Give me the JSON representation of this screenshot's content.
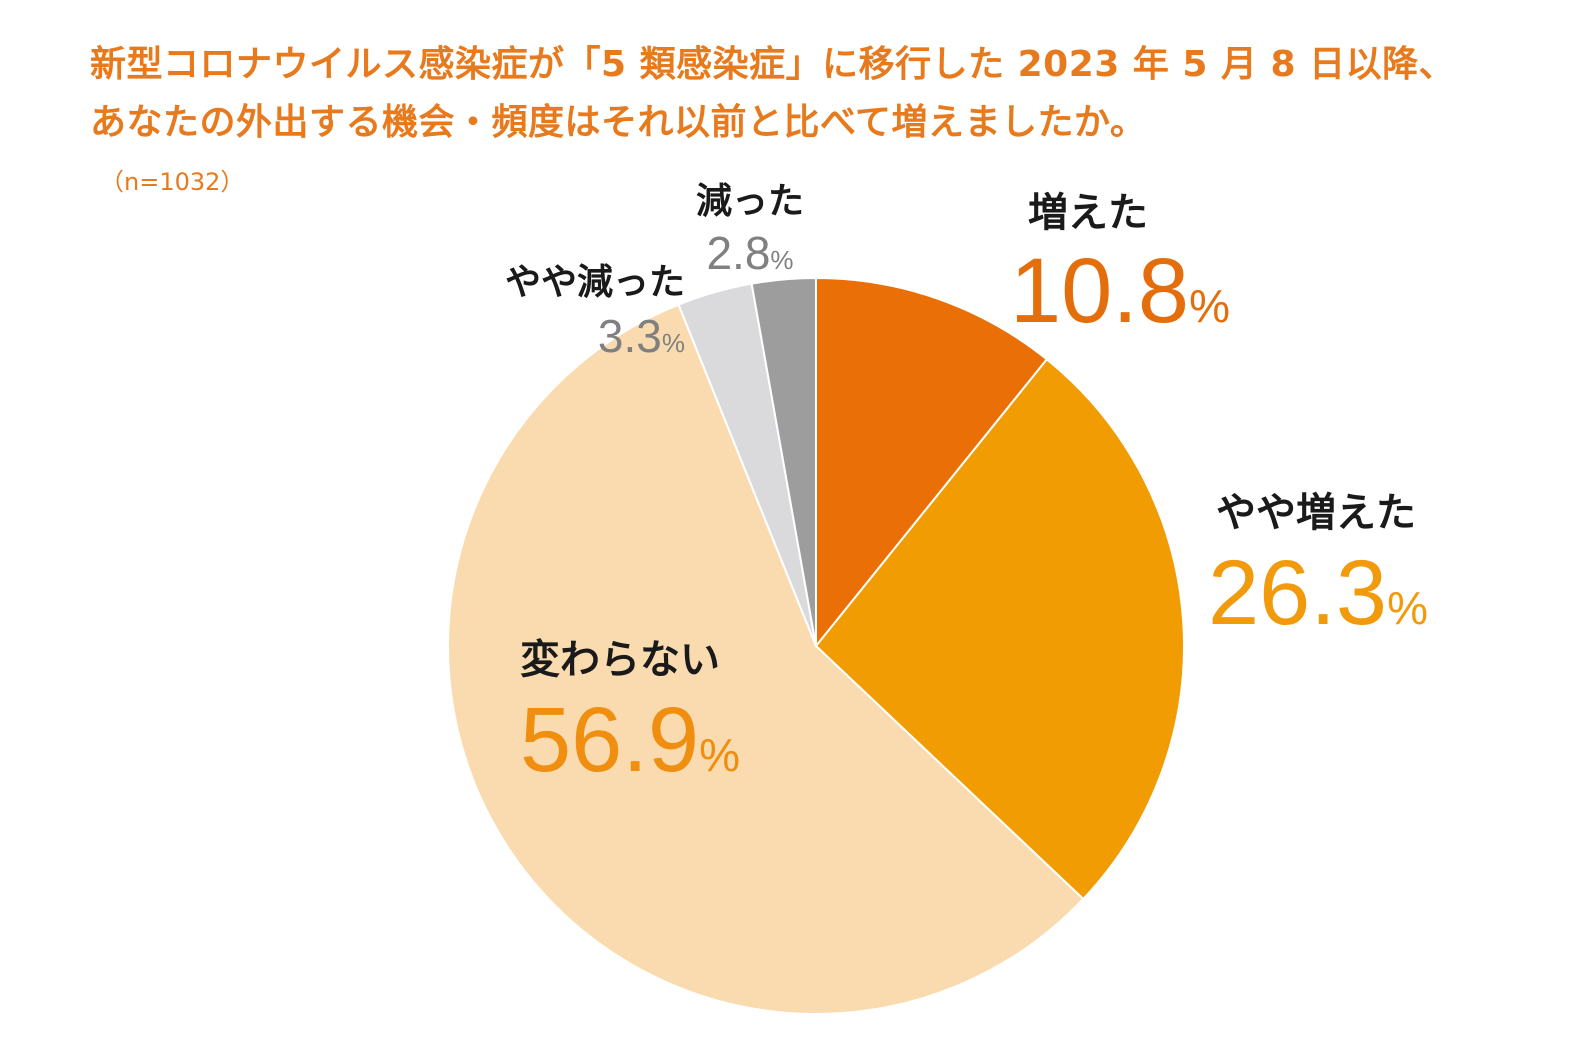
{
  "title_lines": [
    "新型コロナウイルス感染症が「5 類感染症」に移行した 2023 年 5 月 8 日以降、",
    "あなたの外出する機会・頻度はそれ以前と比べて増えましたか。"
  ],
  "sample_size": "（n=1032）",
  "percent_sign": "%",
  "chart_data": {
    "type": "pie",
    "title": "新型コロナウイルス感染症が「5 類感染症」に移行した 2023 年 5 月 8 日以降、あなたの外出する機会・頻度はそれ以前と比べて増えましたか。",
    "n": 1032,
    "start_angle": "12 o'clock",
    "direction": "clockwise",
    "slices": [
      {
        "label": "増えた",
        "value": 10.8,
        "display": "10.8",
        "color": "#EB6F07"
      },
      {
        "label": "やや増えた",
        "value": 26.3,
        "display": "26.3",
        "color": "#F29C04"
      },
      {
        "label": "変わらない",
        "value": 56.9,
        "display": "56.9",
        "color": "#FADBB0"
      },
      {
        "label": "やや減った",
        "value": 3.3,
        "display": "3.3",
        "color": "#DADADC"
      },
      {
        "label": "減った",
        "value": 2.8,
        "display": "2.8",
        "color": "#9D9D9D"
      }
    ]
  }
}
